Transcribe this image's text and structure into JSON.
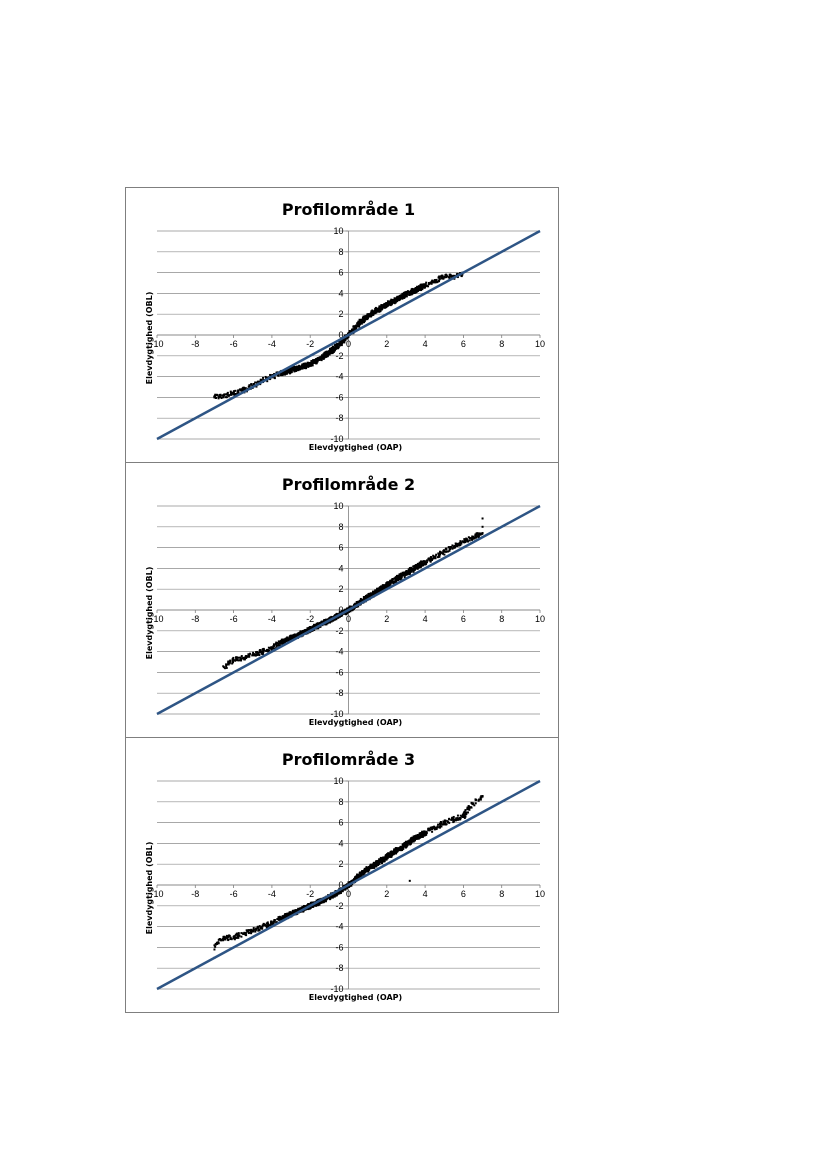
{
  "chart_data": [
    {
      "type": "scatter",
      "title": "Profilområde 1",
      "xlabel": "Elevdygtighed (OAP)",
      "ylabel": "Elevdygtighed (OBL)",
      "xlim": [
        -10,
        10
      ],
      "ylim": [
        -10,
        10
      ],
      "ticks": [
        "-10",
        "-8",
        "-6",
        "-4",
        "-2",
        "0",
        "2",
        "4",
        "6",
        "8",
        "10"
      ],
      "grid": "horizontal",
      "legend": "none",
      "reference_line": {
        "x": [
          -10,
          10
        ],
        "y": [
          -10,
          10
        ],
        "color": "#2e5585"
      },
      "series": [
        {
          "color": "#000000",
          "x": [
            -7.0,
            -6.5,
            -6.0,
            -5.5,
            -5.0,
            -4.5,
            -4.0,
            -3.5,
            -3.0,
            -2.5,
            -2.0,
            -1.5,
            -1.0,
            -0.5,
            0.0,
            0.5,
            1.0,
            1.5,
            2.0,
            2.5,
            3.0,
            3.5,
            4.0,
            4.5,
            5.0,
            5.5,
            6.0
          ],
          "y": [
            -6.0,
            -5.8,
            -5.6,
            -5.3,
            -4.9,
            -4.4,
            -4.0,
            -3.7,
            -3.4,
            -3.1,
            -2.8,
            -2.3,
            -1.7,
            -0.9,
            0.0,
            1.0,
            1.8,
            2.4,
            2.9,
            3.4,
            3.9,
            4.3,
            4.8,
            5.2,
            5.6,
            5.6,
            6.0
          ]
        }
      ]
    },
    {
      "type": "scatter",
      "title": "Profilområde 2",
      "xlabel": "Elevdygtighed (OAP)",
      "ylabel": "Elevdygtighed (OBL)",
      "xlim": [
        -10,
        10
      ],
      "ylim": [
        -10,
        10
      ],
      "ticks": [
        "-10",
        "-8",
        "-6",
        "-4",
        "-2",
        "0",
        "2",
        "4",
        "6",
        "8",
        "10"
      ],
      "grid": "horizontal",
      "legend": "none",
      "reference_line": {
        "x": [
          -10,
          10
        ],
        "y": [
          -10,
          10
        ],
        "color": "#2e5585"
      },
      "series": [
        {
          "color": "#000000",
          "x": [
            -6.5,
            -6.0,
            -5.5,
            -5.0,
            -4.5,
            -4.0,
            -3.5,
            -3.0,
            -2.5,
            -2.0,
            -1.5,
            -1.0,
            -0.5,
            0.0,
            0.5,
            1.0,
            1.5,
            2.0,
            2.5,
            3.0,
            3.5,
            4.0,
            4.5,
            5.0,
            5.5,
            6.0,
            6.5,
            7.0,
            7.0,
            7.0
          ],
          "y": [
            -5.5,
            -4.8,
            -4.6,
            -4.3,
            -4.0,
            -3.6,
            -3.1,
            -2.7,
            -2.3,
            -1.9,
            -1.4,
            -1.0,
            -0.5,
            0.0,
            0.6,
            1.2,
            1.8,
            2.4,
            3.0,
            3.5,
            4.1,
            4.6,
            5.1,
            5.6,
            6.1,
            6.6,
            7.0,
            7.4,
            8.0,
            8.8
          ]
        }
      ]
    },
    {
      "type": "scatter",
      "title": "Profilområde 3",
      "xlabel": "Elevdygtighed (OAP)",
      "ylabel": "Elevdygtighed (OBL)",
      "xlim": [
        -10,
        10
      ],
      "ylim": [
        -10,
        10
      ],
      "ticks": [
        "-10",
        "-8",
        "-6",
        "-4",
        "-2",
        "0",
        "2",
        "4",
        "6",
        "8",
        "10"
      ],
      "grid": "horizontal",
      "legend": "none",
      "reference_line": {
        "x": [
          -10,
          10
        ],
        "y": [
          -10,
          10
        ],
        "color": "#2e5585"
      },
      "series": [
        {
          "color": "#000000",
          "x": [
            -7.0,
            -7.0,
            -7.0,
            -6.5,
            -6.0,
            -5.5,
            -5.0,
            -4.5,
            -4.0,
            -3.5,
            -3.0,
            -2.5,
            -2.0,
            -1.5,
            -1.0,
            -0.5,
            0.0,
            0.5,
            1.0,
            1.5,
            2.0,
            2.5,
            3.0,
            3.5,
            4.0,
            4.5,
            5.0,
            5.5,
            6.0,
            6.3,
            7.0,
            3.2
          ],
          "y": [
            -7.0,
            -6.2,
            -5.8,
            -5.1,
            -5.0,
            -4.7,
            -4.4,
            -4.0,
            -3.6,
            -3.2,
            -2.8,
            -2.4,
            -2.0,
            -1.6,
            -1.2,
            -0.6,
            0.0,
            0.8,
            1.5,
            2.1,
            2.7,
            3.3,
            3.9,
            4.5,
            5.0,
            5.5,
            6.0,
            6.3,
            6.6,
            7.5,
            8.5,
            0.4
          ]
        }
      ]
    }
  ]
}
